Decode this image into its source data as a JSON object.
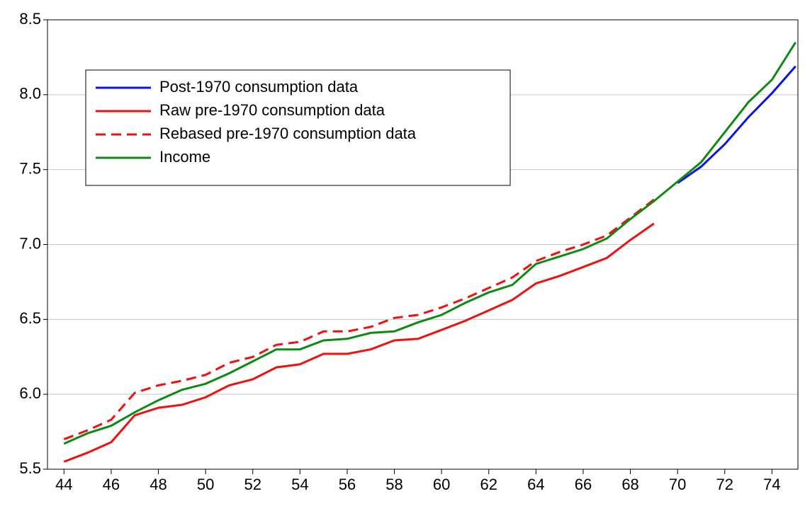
{
  "chart_data": {
    "type": "line",
    "x": [
      44,
      45,
      46,
      47,
      48,
      49,
      50,
      51,
      52,
      53,
      54,
      55,
      56,
      57,
      58,
      59,
      60,
      61,
      62,
      63,
      64,
      65,
      66,
      67,
      68,
      69,
      70,
      71,
      72,
      73,
      74,
      75
    ],
    "series": [
      {
        "name": "Post-1970 consumption data",
        "color": "#0a14e6",
        "style": "solid",
        "values": [
          null,
          null,
          null,
          null,
          null,
          null,
          null,
          null,
          null,
          null,
          null,
          null,
          null,
          null,
          null,
          null,
          null,
          null,
          null,
          null,
          null,
          null,
          null,
          null,
          null,
          null,
          7.41,
          7.52,
          7.67,
          7.85,
          8.01,
          8.19
        ]
      },
      {
        "name": "Raw pre-1970 consumption data",
        "color": "#f01010",
        "style": "solid",
        "values": [
          5.55,
          5.61,
          5.68,
          5.86,
          5.91,
          5.93,
          5.98,
          6.06,
          6.1,
          6.18,
          6.2,
          6.27,
          6.27,
          6.3,
          6.36,
          6.37,
          6.43,
          6.49,
          6.56,
          6.63,
          6.74,
          6.79,
          6.85,
          6.91,
          7.03,
          7.14,
          null,
          null,
          null,
          null,
          null,
          null
        ]
      },
      {
        "name": "Rebased pre-1970 consumption data",
        "color": "#f01010",
        "style": "dashed",
        "values": [
          5.7,
          5.76,
          5.83,
          6.01,
          6.06,
          6.09,
          6.13,
          6.21,
          6.25,
          6.33,
          6.35,
          6.42,
          6.42,
          6.45,
          6.51,
          6.53,
          6.58,
          6.64,
          6.71,
          6.78,
          6.89,
          6.95,
          7.0,
          7.06,
          7.18,
          7.3,
          null,
          null,
          null,
          null,
          null,
          null
        ]
      },
      {
        "name": "Income",
        "color": "#0e8a14",
        "style": "solid",
        "values": [
          5.67,
          5.74,
          5.79,
          5.88,
          5.96,
          6.03,
          6.07,
          6.14,
          6.22,
          6.3,
          6.3,
          6.36,
          6.37,
          6.41,
          6.42,
          6.48,
          6.53,
          6.61,
          6.68,
          6.73,
          6.87,
          6.92,
          6.97,
          7.04,
          7.17,
          7.29,
          7.42,
          7.55,
          7.75,
          7.95,
          8.1,
          8.35
        ]
      }
    ],
    "xlim": [
      43.3,
      75.1
    ],
    "xticks": [
      44,
      46,
      48,
      50,
      52,
      54,
      56,
      58,
      60,
      62,
      64,
      66,
      68,
      70,
      72,
      74
    ],
    "ylim": [
      5.5,
      8.5
    ],
    "yticks": [
      {
        "value": 5.5,
        "label": "5.5"
      },
      {
        "value": 6,
        "label": "6.0"
      },
      {
        "value": 6.5,
        "label": "6.5"
      },
      {
        "value": 7,
        "label": "7.0"
      },
      {
        "value": 7.5,
        "label": "7.5"
      },
      {
        "value": 8,
        "label": "8.0"
      },
      {
        "value": 8.5,
        "label": "8.5"
      }
    ],
    "grid": true,
    "legend": "upper left"
  }
}
